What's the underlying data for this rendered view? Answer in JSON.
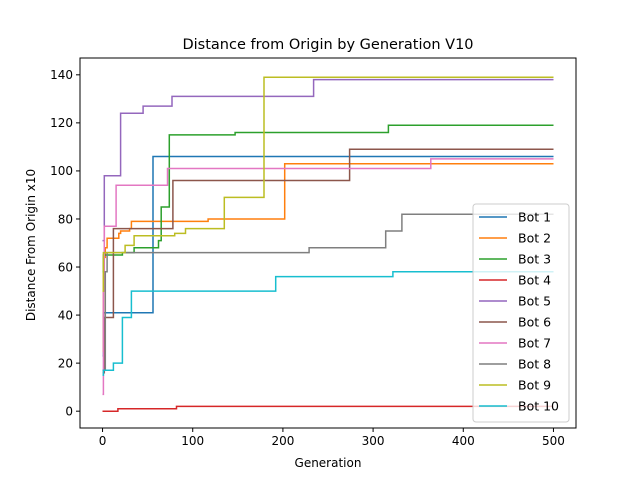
{
  "chart_data": {
    "type": "line",
    "title": "Distance from Origin by Generation V10",
    "xlabel": "Generation",
    "ylabel": "Distance From Origin x10",
    "xlim": [
      -25,
      525
    ],
    "ylim": [
      -7,
      147
    ],
    "xticks": [
      0,
      100,
      200,
      300,
      400,
      500
    ],
    "yticks": [
      0,
      20,
      40,
      60,
      80,
      100,
      120,
      140
    ],
    "grid": false,
    "legend_position": "lower-right",
    "step": "post",
    "series": [
      {
        "name": "Bot 1",
        "color": "#1f77b4",
        "points": [
          [
            0,
            23
          ],
          [
            1,
            41
          ],
          [
            55,
            41
          ],
          [
            56,
            106
          ],
          [
            500,
            106
          ]
        ]
      },
      {
        "name": "Bot 2",
        "color": "#ff7f0e",
        "points": [
          [
            0,
            25
          ],
          [
            1,
            64
          ],
          [
            3,
            68
          ],
          [
            5,
            72
          ],
          [
            15,
            72
          ],
          [
            18,
            74
          ],
          [
            20,
            75
          ],
          [
            30,
            76
          ],
          [
            32,
            79
          ],
          [
            115,
            79
          ],
          [
            117,
            80
          ],
          [
            200,
            80
          ],
          [
            202,
            103
          ],
          [
            500,
            103
          ]
        ]
      },
      {
        "name": "Bot 3",
        "color": "#2ca02c",
        "points": [
          [
            0,
            58
          ],
          [
            1,
            65
          ],
          [
            20,
            65
          ],
          [
            22,
            66
          ],
          [
            32,
            66
          ],
          [
            35,
            68
          ],
          [
            60,
            68
          ],
          [
            62,
            71
          ],
          [
            65,
            85
          ],
          [
            72,
            85
          ],
          [
            74,
            115
          ],
          [
            145,
            115
          ],
          [
            147,
            116
          ],
          [
            315,
            116
          ],
          [
            317,
            119
          ],
          [
            500,
            119
          ]
        ]
      },
      {
        "name": "Bot 4",
        "color": "#d62728",
        "points": [
          [
            0,
            0
          ],
          [
            15,
            0
          ],
          [
            17,
            1
          ],
          [
            80,
            1
          ],
          [
            82,
            2
          ],
          [
            500,
            2
          ]
        ]
      },
      {
        "name": "Bot 5",
        "color": "#9467bd",
        "points": [
          [
            0,
            71
          ],
          [
            2,
            98
          ],
          [
            18,
            98
          ],
          [
            20,
            124
          ],
          [
            43,
            124
          ],
          [
            45,
            127
          ],
          [
            75,
            127
          ],
          [
            77,
            131
          ],
          [
            232,
            131
          ],
          [
            234,
            138
          ],
          [
            500,
            138
          ]
        ]
      },
      {
        "name": "Bot 6",
        "color": "#8c564b",
        "points": [
          [
            0,
            16
          ],
          [
            2,
            39
          ],
          [
            10,
            39
          ],
          [
            12,
            76
          ],
          [
            76,
            76
          ],
          [
            78,
            96
          ],
          [
            272,
            96
          ],
          [
            274,
            109
          ],
          [
            500,
            109
          ]
        ]
      },
      {
        "name": "Bot 7",
        "color": "#e377c2",
        "points": [
          [
            0,
            7
          ],
          [
            1,
            50
          ],
          [
            2,
            77
          ],
          [
            13,
            77
          ],
          [
            15,
            94
          ],
          [
            70,
            94
          ],
          [
            72,
            101
          ],
          [
            362,
            101
          ],
          [
            364,
            105
          ],
          [
            500,
            105
          ]
        ]
      },
      {
        "name": "Bot 8",
        "color": "#7f7f7f",
        "points": [
          [
            0,
            17
          ],
          [
            3,
            58
          ],
          [
            5,
            66
          ],
          [
            227,
            66
          ],
          [
            229,
            68
          ],
          [
            312,
            68
          ],
          [
            314,
            75
          ],
          [
            330,
            75
          ],
          [
            332,
            82
          ],
          [
            500,
            82
          ]
        ]
      },
      {
        "name": "Bot 9",
        "color": "#bcbd22",
        "points": [
          [
            0,
            50
          ],
          [
            1,
            66
          ],
          [
            20,
            66
          ],
          [
            25,
            69
          ],
          [
            32,
            69
          ],
          [
            35,
            73
          ],
          [
            75,
            73
          ],
          [
            80,
            74
          ],
          [
            90,
            74
          ],
          [
            92,
            76
          ],
          [
            133,
            76
          ],
          [
            135,
            89
          ],
          [
            177,
            89
          ],
          [
            179,
            139
          ],
          [
            500,
            139
          ]
        ]
      },
      {
        "name": "Bot 10",
        "color": "#17becf",
        "points": [
          [
            0,
            15
          ],
          [
            1,
            17
          ],
          [
            10,
            17
          ],
          [
            12,
            20
          ],
          [
            20,
            20
          ],
          [
            22,
            39
          ],
          [
            30,
            39
          ],
          [
            32,
            50
          ],
          [
            190,
            50
          ],
          [
            192,
            56
          ],
          [
            320,
            56
          ],
          [
            322,
            58
          ],
          [
            500,
            58
          ]
        ]
      }
    ]
  }
}
